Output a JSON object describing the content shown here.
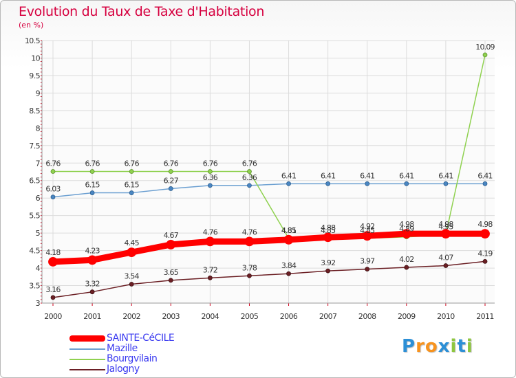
{
  "title": "Evolution du Taux de Taxe d'Habitation",
  "subtitle": "(en %)",
  "logo": {
    "letters": [
      "P",
      "r",
      "o",
      "x",
      "i",
      "t",
      "i"
    ],
    "colors": [
      "#2c8fd6",
      "#f7931e",
      "#f7931e",
      "#2c8fd6",
      "#8dc63f",
      "#2c8fd6",
      "#8dc63f"
    ]
  },
  "chart_data": {
    "type": "line",
    "title": "Evolution du Taux de Taxe d'Habitation",
    "ylabel": "(en %)",
    "xlabel": "",
    "x": [
      "2000",
      "2001",
      "2002",
      "2003",
      "2004",
      "2005",
      "2006",
      "2007",
      "2008",
      "2009",
      "2010",
      "2011"
    ],
    "ylim": [
      3,
      10.5
    ],
    "yticks": [
      "3",
      "3.5",
      "4",
      "4.5",
      "5",
      "5.5",
      "6",
      "6.5",
      "7",
      "7.5",
      "8",
      "8.5",
      "9",
      "9.5",
      "10",
      "10.5"
    ],
    "grid": true,
    "legend_position": "bottom-left",
    "series": [
      {
        "name": "SAINTE-CéCILE",
        "color": "#ff0000",
        "values": [
          4.18,
          4.23,
          4.45,
          4.67,
          4.76,
          4.76,
          4.81,
          4.88,
          4.92,
          4.98,
          4.98,
          4.98
        ]
      },
      {
        "name": "Mazille",
        "color": "#6b9fd1",
        "values": [
          6.03,
          6.15,
          6.15,
          6.27,
          6.36,
          6.36,
          6.41,
          6.41,
          6.41,
          6.41,
          6.41,
          6.41
        ]
      },
      {
        "name": "Bourgvilain",
        "color": "#8fd14f",
        "values": [
          6.76,
          6.76,
          6.76,
          6.76,
          6.76,
          6.76,
          4.85,
          4.85,
          4.85,
          4.89,
          4.95,
          10.09
        ]
      },
      {
        "name": "Jalogny",
        "color": "#6b1f24",
        "values": [
          3.16,
          3.32,
          3.54,
          3.65,
          3.72,
          3.78,
          3.84,
          3.92,
          3.97,
          4.02,
          4.07,
          4.19
        ]
      }
    ]
  }
}
